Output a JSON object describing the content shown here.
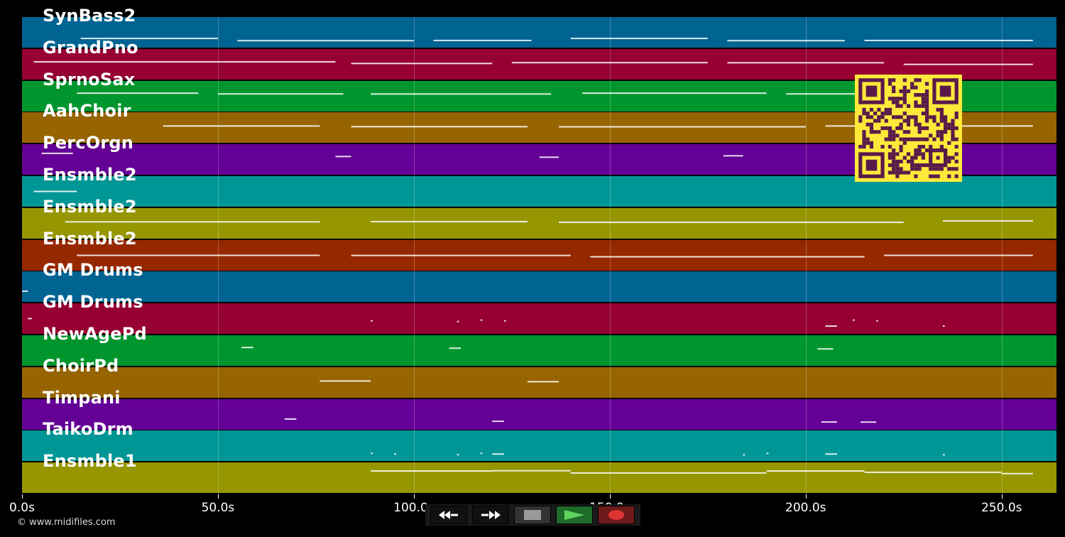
{
  "tracks": [
    {
      "name": "SynBass2",
      "color": "#006493"
    },
    {
      "name": "GrandPno",
      "color": "#960032"
    },
    {
      "name": "SprnoSax",
      "color": "#00962d"
    },
    {
      "name": "AahChoir",
      "color": "#966400"
    },
    {
      "name": "PercOrgn",
      "color": "#640096"
    },
    {
      "name": "Ensmble2",
      "color": "#009696"
    },
    {
      "name": "Ensmble2",
      "color": "#969600"
    },
    {
      "name": "Ensmble2",
      "color": "#962800"
    },
    {
      "name": "GM Drums",
      "color": "#006493"
    },
    {
      "name": "GM Drums",
      "color": "#960032"
    },
    {
      "name": "NewAgePd",
      "color": "#00962d"
    },
    {
      "name": "ChoirPd",
      "color": "#966400"
    },
    {
      "name": "Timpani",
      "color": "#640096"
    },
    {
      "name": "TaikoDrm",
      "color": "#009696"
    },
    {
      "name": "Ensmble1",
      "color": "#969600"
    }
  ],
  "timeline": {
    "ticks": [
      "0.0s",
      "50.0s",
      "100.0s",
      "150.0s",
      "200.0s",
      "250.0s"
    ],
    "tick_seconds": [
      0,
      50,
      100,
      150,
      200,
      250
    ],
    "total_seconds": 264
  },
  "copyright": "© www.midifiles.com",
  "controls": {
    "rewind_icon": "rewind-icon",
    "forward_icon": "fast-forward-icon",
    "stop_icon": "stop-icon",
    "play_icon": "play-icon",
    "record_icon": "record-icon"
  },
  "qr_code": {
    "icon": "qr-code-icon",
    "color": "#5a1a4a",
    "background": "#fde93a"
  }
}
